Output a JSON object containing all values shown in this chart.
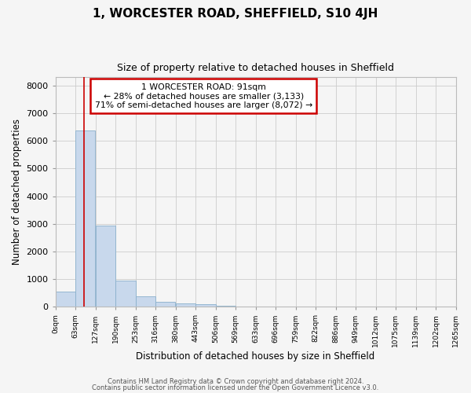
{
  "title1": "1, WORCESTER ROAD, SHEFFIELD, S10 4JH",
  "title2": "Size of property relative to detached houses in Sheffield",
  "xlabel": "Distribution of detached houses by size in Sheffield",
  "ylabel": "Number of detached properties",
  "bar_color": "#c8d8ec",
  "bar_edge_color": "#8ab0cc",
  "bin_edges": [
    0,
    63,
    127,
    190,
    253,
    316,
    380,
    443,
    506,
    569,
    633,
    696,
    759,
    822,
    886,
    949,
    1012,
    1075,
    1139,
    1202,
    1265
  ],
  "bar_heights": [
    560,
    6380,
    2950,
    950,
    380,
    175,
    125,
    80,
    50,
    0,
    0,
    0,
    0,
    0,
    0,
    0,
    0,
    0,
    0,
    0
  ],
  "property_size": 91,
  "vline_color": "#cc0000",
  "ylim": [
    0,
    8300
  ],
  "yticks": [
    0,
    1000,
    2000,
    3000,
    4000,
    5000,
    6000,
    7000,
    8000
  ],
  "annotation_text": "1 WORCESTER ROAD: 91sqm\n← 28% of detached houses are smaller (3,133)\n71% of semi-detached houses are larger (8,072) →",
  "annotation_box_color": "#ffffff",
  "annotation_border_color": "#cc0000",
  "footer_text1": "Contains HM Land Registry data © Crown copyright and database right 2024.",
  "footer_text2": "Contains public sector information licensed under the Open Government Licence v3.0.",
  "background_color": "#f5f5f5",
  "grid_color": "#cccccc",
  "title1_fontsize": 11,
  "title2_fontsize": 9
}
